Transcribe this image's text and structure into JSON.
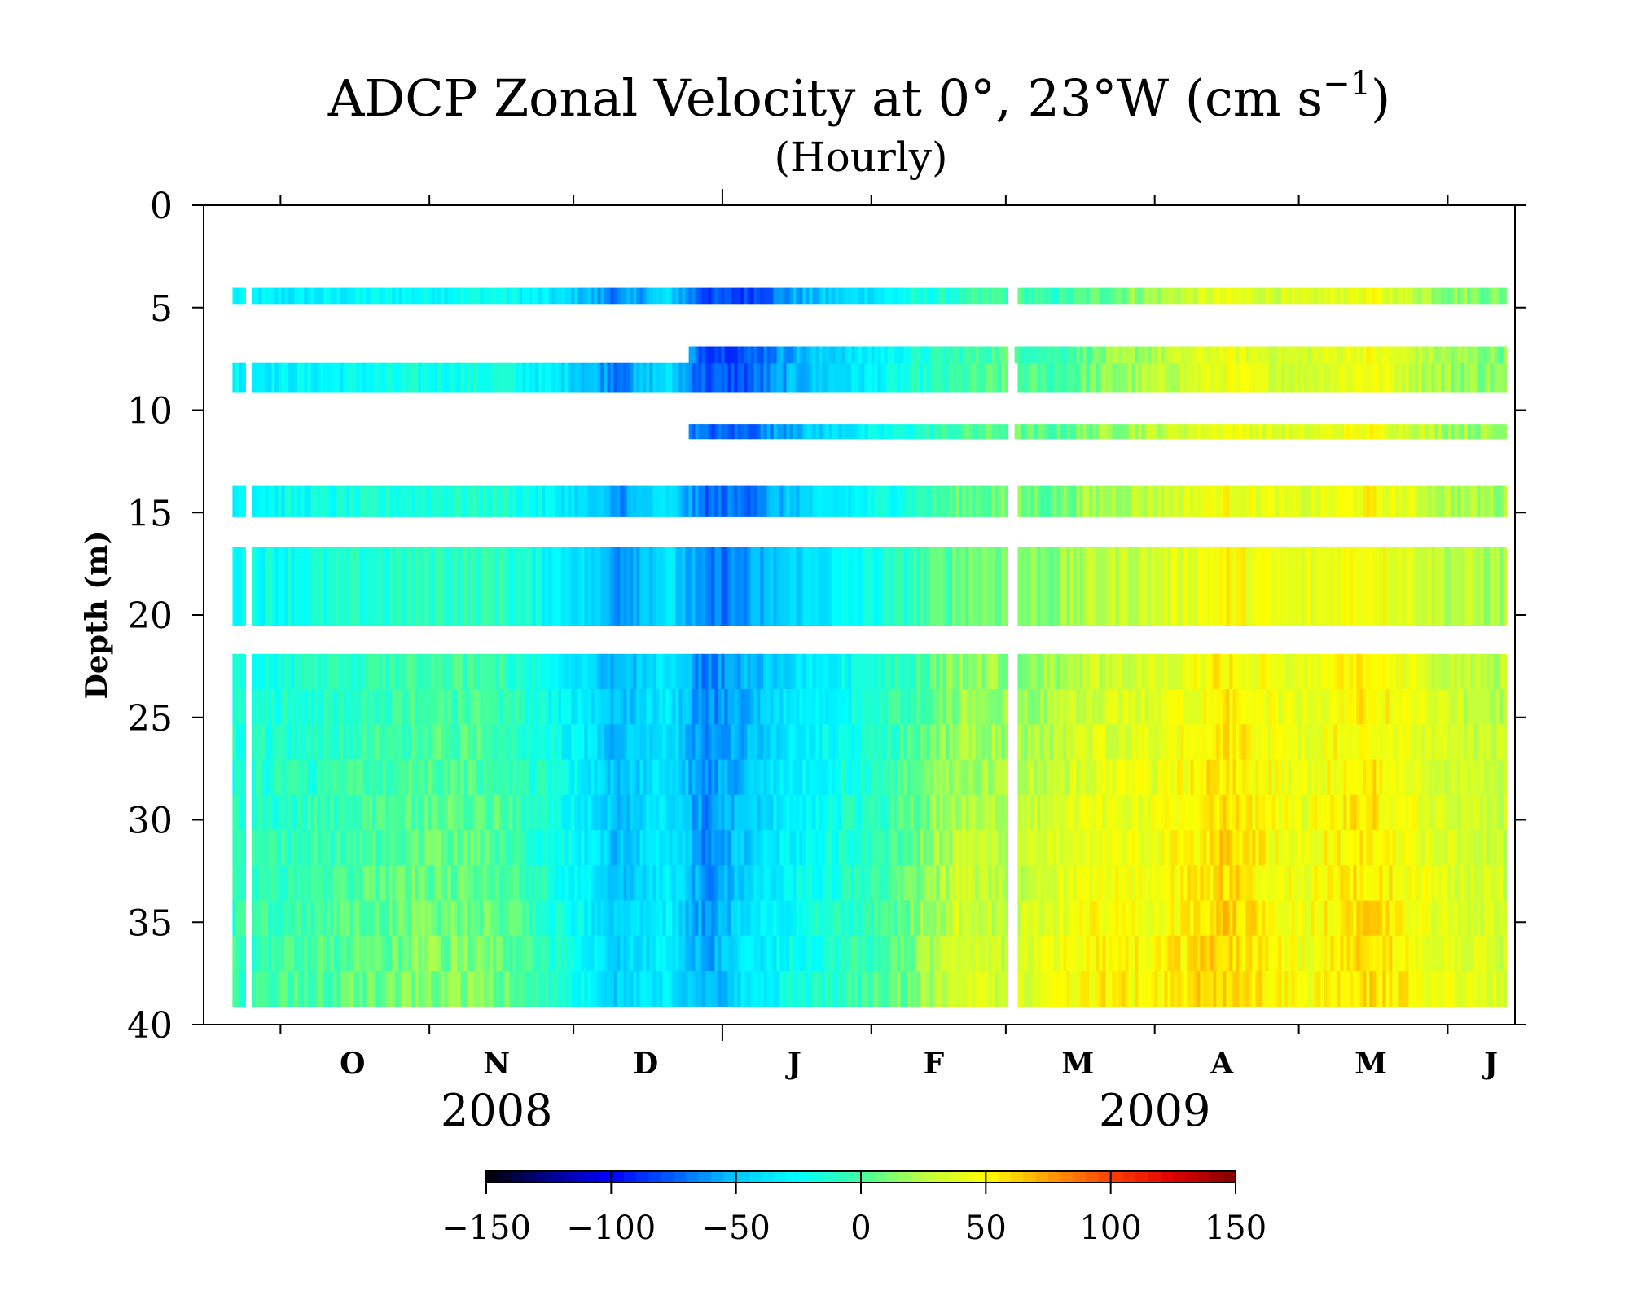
{
  "chart_data": {
    "type": "heatmap",
    "title": "ADCP Zonal Velocity at 0°, 23°W (cm s",
    "title_sup": "−1",
    "title_close": ")",
    "subtitle": "(Hourly)",
    "ylabel": "Depth (m)",
    "xlabel": "",
    "ylim": [
      40,
      0
    ],
    "y_ticks": [
      0,
      5,
      10,
      15,
      20,
      25,
      30,
      35,
      40
    ],
    "x_range": [
      "2008-09-15",
      "2009-06-15"
    ],
    "x_month_labels": [
      "O",
      "N",
      "D",
      "J",
      "F",
      "M",
      "A",
      "M",
      "J"
    ],
    "year_labels": [
      "2008",
      "2009"
    ],
    "y_scale": "linear",
    "grid": false,
    "colorbar": {
      "placement": "bottom",
      "range": [
        -150,
        150
      ],
      "tick_labels": [
        "−150",
        "−100",
        "−50",
        "0",
        "50",
        "100",
        "150"
      ],
      "colors": [
        "#000000",
        "#00008f",
        "#0000ff",
        "#0060ff",
        "#00c8ff",
        "#00ffff",
        "#40ff9f",
        "#bfff3f",
        "#ffff00",
        "#ffa000",
        "#ff4000",
        "#e00000",
        "#800000"
      ]
    },
    "depth_bins": [
      {
        "top": 4.0,
        "bottom": 4.8,
        "start": "2008-09-21",
        "end": "2009-06-13"
      },
      {
        "top": 7.7,
        "bottom": 9.1,
        "start": "2008-09-21",
        "end": "2009-06-13"
      },
      {
        "top": 6.9,
        "bottom": 7.7,
        "start": "2008-12-25",
        "end": "2009-06-13"
      },
      {
        "top": 10.7,
        "bottom": 11.4,
        "start": "2008-12-25",
        "end": "2009-06-13"
      },
      {
        "top": 13.7,
        "bottom": 15.2,
        "start": "2008-09-21",
        "end": "2009-06-13"
      },
      {
        "top": 16.7,
        "bottom": 20.5,
        "start": "2008-09-21",
        "end": "2009-06-13"
      },
      {
        "top": 21.9,
        "bottom": 39.1,
        "start": "2008-09-21",
        "end": "2009-06-13"
      }
    ],
    "data_gaps": [
      "2008-09-24",
      "2009-03-02"
    ],
    "velocity_timeline": {
      "dates": [
        "2008-09-21",
        "2008-10-01",
        "2008-10-15",
        "2008-11-01",
        "2008-11-15",
        "2008-12-01",
        "2008-12-10",
        "2008-12-20",
        "2008-12-28",
        "2009-01-05",
        "2009-01-15",
        "2009-02-01",
        "2009-02-10",
        "2009-02-20",
        "2009-03-01",
        "2009-03-10",
        "2009-03-20",
        "2009-04-01",
        "2009-04-15",
        "2009-05-01",
        "2009-05-15",
        "2009-06-01",
        "2009-06-13"
      ],
      "surface_cm_s": [
        -30,
        -35,
        -30,
        -25,
        -20,
        -45,
        -70,
        -40,
        -80,
        -85,
        -60,
        -35,
        -20,
        -10,
        0,
        -10,
        5,
        20,
        40,
        30,
        45,
        15,
        10
      ],
      "deep_cm_s": [
        -5,
        0,
        5,
        15,
        10,
        -20,
        -45,
        -30,
        -60,
        -35,
        -20,
        0,
        15,
        40,
        30,
        45,
        55,
        50,
        65,
        45,
        60,
        40,
        35
      ]
    }
  }
}
